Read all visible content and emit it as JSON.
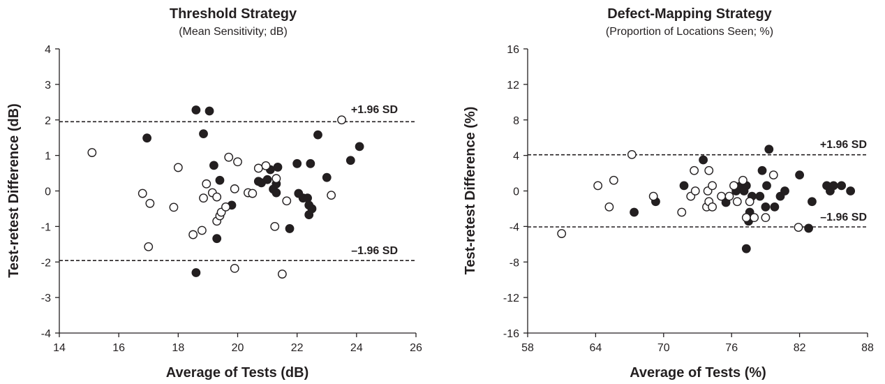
{
  "chart_data": [
    {
      "type": "scatter",
      "title": "Threshold Strategy",
      "subtitle": "(Mean Sensitivity; dB)",
      "xlabel": "Average of Tests (dB)",
      "ylabel": "Test-retest Difference (dB)",
      "xlim": [
        14,
        26
      ],
      "ylim": [
        -4,
        4
      ],
      "xticks": [
        14,
        16,
        18,
        20,
        22,
        24,
        26
      ],
      "yticks": [
        -4,
        -3,
        -2,
        -1,
        0,
        1,
        2,
        3,
        4
      ],
      "xtick_labels": [
        "14",
        "16",
        "18",
        "20",
        "22",
        "24",
        "26"
      ],
      "ytick_labels": [
        "-4",
        "-3",
        "-2",
        "-1",
        "0",
        "1",
        "2",
        "3",
        "4"
      ],
      "grid": false,
      "reference_lines": [
        {
          "label": "+1.96 SD",
          "y": 1.95
        },
        {
          "label": "–1.96 SD",
          "y": -1.96
        }
      ],
      "series": [
        {
          "marker": "filled",
          "color": "#231f20",
          "points": [
            [
              16.95,
              1.49
            ],
            [
              18.6,
              2.28
            ],
            [
              19.05,
              2.25
            ],
            [
              18.85,
              1.61
            ],
            [
              19.2,
              0.72
            ],
            [
              19.4,
              0.3
            ],
            [
              19.3,
              -1.34
            ],
            [
              19.8,
              -0.4
            ],
            [
              18.6,
              -2.3
            ],
            [
              20.7,
              0.27
            ],
            [
              20.8,
              0.23
            ],
            [
              21.0,
              0.32
            ],
            [
              21.1,
              0.6
            ],
            [
              21.2,
              0.05
            ],
            [
              21.3,
              -0.05
            ],
            [
              21.35,
              0.67
            ],
            [
              21.3,
              0.2
            ],
            [
              21.75,
              -1.06
            ],
            [
              22.0,
              0.77
            ],
            [
              22.05,
              -0.07
            ],
            [
              22.2,
              -0.2
            ],
            [
              22.35,
              -0.2
            ],
            [
              22.4,
              -0.4
            ],
            [
              22.4,
              -0.67
            ],
            [
              22.5,
              -0.5
            ],
            [
              22.45,
              0.77
            ],
            [
              22.7,
              1.58
            ],
            [
              23.0,
              0.38
            ],
            [
              23.8,
              0.86
            ],
            [
              24.1,
              1.25
            ]
          ]
        },
        {
          "marker": "open",
          "color": "#231f20",
          "points": [
            [
              15.1,
              1.08
            ],
            [
              16.8,
              -0.07
            ],
            [
              17.05,
              -0.35
            ],
            [
              17.0,
              -1.57
            ],
            [
              17.85,
              -0.46
            ],
            [
              18.0,
              0.66
            ],
            [
              18.5,
              -1.23
            ],
            [
              18.8,
              -1.11
            ],
            [
              18.85,
              -0.2
            ],
            [
              18.95,
              0.2
            ],
            [
              19.15,
              -0.05
            ],
            [
              19.3,
              -0.17
            ],
            [
              19.3,
              -0.85
            ],
            [
              19.4,
              -0.7
            ],
            [
              19.45,
              -0.6
            ],
            [
              19.6,
              -0.45
            ],
            [
              19.7,
              0.95
            ],
            [
              19.9,
              -2.18
            ],
            [
              19.9,
              0.06
            ],
            [
              20.0,
              0.82
            ],
            [
              20.35,
              -0.05
            ],
            [
              20.5,
              -0.07
            ],
            [
              20.7,
              0.64
            ],
            [
              20.95,
              0.71
            ],
            [
              21.25,
              -1.0
            ],
            [
              21.3,
              0.35
            ],
            [
              21.5,
              -2.34
            ],
            [
              21.65,
              -0.28
            ],
            [
              23.15,
              -0.12
            ],
            [
              23.5,
              2.0
            ]
          ]
        }
      ]
    },
    {
      "type": "scatter",
      "title": "Defect-Mapping Strategy",
      "subtitle": "(Proportion of Locations Seen; %)",
      "xlabel": "Average of Tests (%)",
      "ylabel": "Test-retest Difference (%)",
      "xlim": [
        58,
        88
      ],
      "ylim": [
        -16,
        16
      ],
      "xticks": [
        58,
        64,
        70,
        76,
        82,
        88
      ],
      "yticks": [
        -16,
        -12,
        -8,
        -4,
        0,
        4,
        8,
        12,
        16
      ],
      "xtick_labels": [
        "58",
        "64",
        "70",
        "76",
        "82",
        "88"
      ],
      "ytick_labels": [
        "-16",
        "-12",
        "-8",
        "-4",
        "0",
        "4",
        "8",
        "12",
        "16"
      ],
      "grid": false,
      "reference_lines": [
        {
          "label": "+1.96 SD",
          "y": 4.07
        },
        {
          "label": "–1.96 SD",
          "y": -4.05
        }
      ],
      "series": [
        {
          "marker": "filled",
          "color": "#231f20",
          "points": [
            [
              67.4,
              -2.4
            ],
            [
              69.3,
              -1.2
            ],
            [
              71.8,
              0.6
            ],
            [
              73.5,
              3.5
            ],
            [
              75.5,
              -1.3
            ],
            [
              76.4,
              0.0
            ],
            [
              76.7,
              0.5
            ],
            [
              77.1,
              0.0
            ],
            [
              77.3,
              0.6
            ],
            [
              77.3,
              -6.5
            ],
            [
              77.5,
              -3.4
            ],
            [
              77.6,
              -2.4
            ],
            [
              77.8,
              -0.6
            ],
            [
              78.5,
              -0.6
            ],
            [
              78.7,
              2.3
            ],
            [
              79.1,
              0.6
            ],
            [
              79.0,
              -1.8
            ],
            [
              79.3,
              4.7
            ],
            [
              79.8,
              -1.8
            ],
            [
              80.3,
              -0.6
            ],
            [
              80.7,
              0.0
            ],
            [
              82.0,
              1.8
            ],
            [
              82.8,
              -4.2
            ],
            [
              83.1,
              -1.2
            ],
            [
              84.4,
              0.6
            ],
            [
              84.7,
              0.0
            ],
            [
              85.0,
              0.6
            ],
            [
              85.7,
              0.6
            ],
            [
              86.5,
              0.0
            ]
          ]
        },
        {
          "marker": "open",
          "color": "#231f20",
          "points": [
            [
              61.0,
              -4.8
            ],
            [
              64.2,
              0.6
            ],
            [
              65.2,
              -1.8
            ],
            [
              65.6,
              1.2
            ],
            [
              67.2,
              4.1
            ],
            [
              69.1,
              -0.6
            ],
            [
              71.6,
              -2.4
            ],
            [
              72.4,
              -0.6
            ],
            [
              72.7,
              2.3
            ],
            [
              72.8,
              0.0
            ],
            [
              73.8,
              -1.8
            ],
            [
              73.9,
              0.0
            ],
            [
              74.0,
              2.3
            ],
            [
              74.0,
              -1.2
            ],
            [
              74.3,
              -1.8
            ],
            [
              74.3,
              0.6
            ],
            [
              75.1,
              -0.6
            ],
            [
              75.8,
              -0.6
            ],
            [
              76.2,
              0.6
            ],
            [
              76.5,
              -1.2
            ],
            [
              77.0,
              1.2
            ],
            [
              77.3,
              -3.0
            ],
            [
              77.6,
              -1.2
            ],
            [
              78.0,
              -3.0
            ],
            [
              79.0,
              -3.0
            ],
            [
              79.7,
              1.8
            ],
            [
              81.9,
              -4.1
            ]
          ]
        }
      ]
    }
  ]
}
